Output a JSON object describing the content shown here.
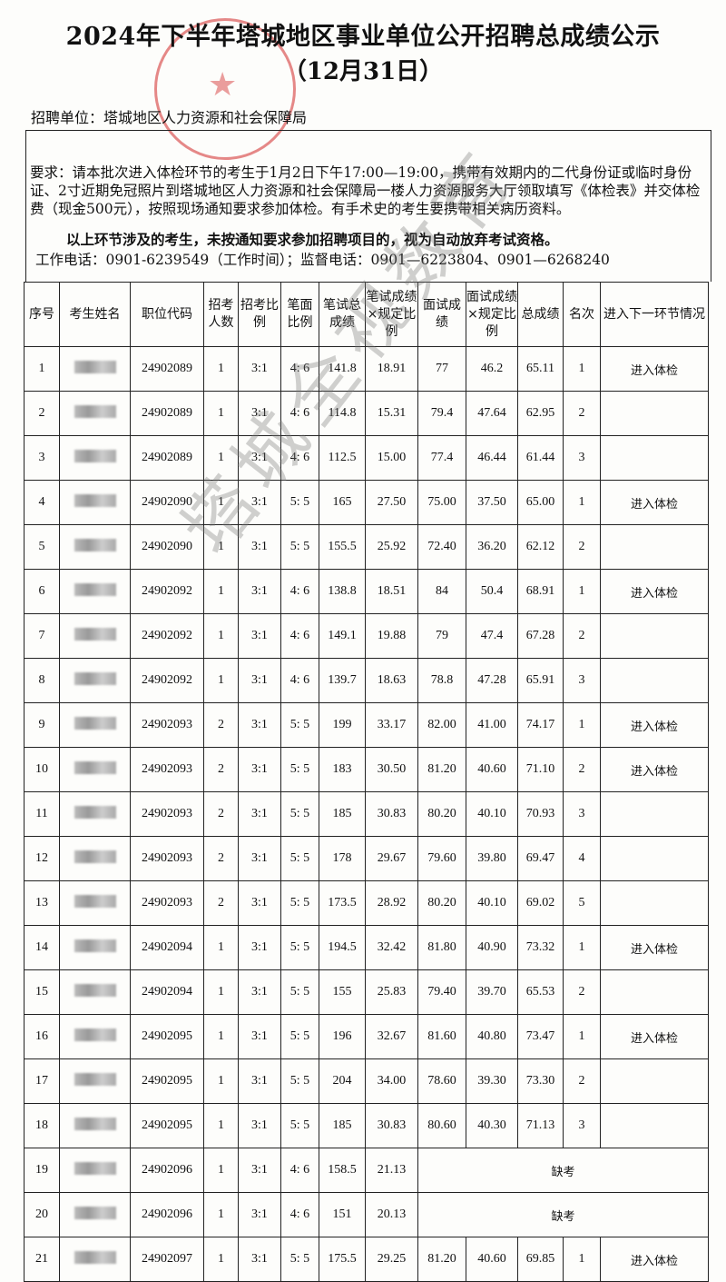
{
  "header": {
    "title": "2024年下半年塔城地区事业单位公开招聘总成绩公示",
    "subtitle": "（12月31日）",
    "unit": "招聘单位：塔城地区人力资源和社会保障局"
  },
  "notice": {
    "requirement": "要求：请本批次进入体检环节的考生于1月2日下午17:00—19:00，携带有效期内的二代身份证或临时身份证、2寸近期免冠照片到塔城地区人力资源和社会保障局一楼人力资源服务大厅领取填写《体检表》并交体检费（现金500元），按照现场通知要求参加体检。有手术史的考生要携带相关病历资料。",
    "warning": "以上环节涉及的考生，未按通知要求参加招聘项目的，视为自动放弃考试资格。",
    "phones": "工作电话：0901-6239549（工作时间）；监督电话：0901—6223804、0901—6268240"
  },
  "table": {
    "headers": [
      "序号",
      "考生姓名",
      "职位代码",
      "招考人数",
      "招考比例",
      "笔面比例",
      "笔试总成绩",
      "笔试成绩×规定比例",
      "面试成绩",
      "面试成绩×规定比例",
      "总成绩",
      "名次",
      "进入下一环节情况"
    ],
    "rows": [
      [
        "1",
        "",
        "24902089",
        "1",
        "3:1",
        "4: 6",
        "141.8",
        "18.91",
        "77",
        "46.2",
        "65.11",
        "1",
        "进入体检"
      ],
      [
        "2",
        "",
        "24902089",
        "1",
        "3:1",
        "4: 6",
        "114.8",
        "15.31",
        "79.4",
        "47.64",
        "62.95",
        "2",
        ""
      ],
      [
        "3",
        "",
        "24902089",
        "1",
        "3:1",
        "4: 6",
        "112.5",
        "15.00",
        "77.4",
        "46.44",
        "61.44",
        "3",
        ""
      ],
      [
        "4",
        "",
        "24902090",
        "1",
        "3:1",
        "5: 5",
        "165",
        "27.50",
        "75.00",
        "37.50",
        "65.00",
        "1",
        "进入体检"
      ],
      [
        "5",
        "",
        "24902090",
        "1",
        "3:1",
        "5: 5",
        "155.5",
        "25.92",
        "72.40",
        "36.20",
        "62.12",
        "2",
        ""
      ],
      [
        "6",
        "",
        "24902092",
        "1",
        "3:1",
        "4: 6",
        "138.8",
        "18.51",
        "84",
        "50.4",
        "68.91",
        "1",
        "进入体检"
      ],
      [
        "7",
        "",
        "24902092",
        "1",
        "3:1",
        "4: 6",
        "149.1",
        "19.88",
        "79",
        "47.4",
        "67.28",
        "2",
        ""
      ],
      [
        "8",
        "",
        "24902092",
        "1",
        "3:1",
        "4: 6",
        "139.7",
        "18.63",
        "78.8",
        "47.28",
        "65.91",
        "3",
        ""
      ],
      [
        "9",
        "",
        "24902093",
        "2",
        "3:1",
        "5: 5",
        "199",
        "33.17",
        "82.00",
        "41.00",
        "74.17",
        "1",
        "进入体检"
      ],
      [
        "10",
        "",
        "24902093",
        "2",
        "3:1",
        "5: 5",
        "183",
        "30.50",
        "81.20",
        "40.60",
        "71.10",
        "2",
        "进入体检"
      ],
      [
        "11",
        "",
        "24902093",
        "2",
        "3:1",
        "5: 5",
        "185",
        "30.83",
        "80.20",
        "40.10",
        "70.93",
        "3",
        ""
      ],
      [
        "12",
        "",
        "24902093",
        "2",
        "3:1",
        "5: 5",
        "178",
        "29.67",
        "79.60",
        "39.80",
        "69.47",
        "4",
        ""
      ],
      [
        "13",
        "",
        "24902093",
        "2",
        "3:1",
        "5: 5",
        "173.5",
        "28.92",
        "80.20",
        "40.10",
        "69.02",
        "5",
        ""
      ],
      [
        "14",
        "",
        "24902094",
        "1",
        "3:1",
        "5: 5",
        "194.5",
        "32.42",
        "81.80",
        "40.90",
        "73.32",
        "1",
        "进入体检"
      ],
      [
        "15",
        "",
        "24902094",
        "1",
        "3:1",
        "5: 5",
        "155",
        "25.83",
        "79.40",
        "39.70",
        "65.53",
        "2",
        ""
      ],
      [
        "16",
        "",
        "24902095",
        "1",
        "3:1",
        "5: 5",
        "196",
        "32.67",
        "81.60",
        "40.80",
        "73.47",
        "1",
        "进入体检"
      ],
      [
        "17",
        "",
        "24902095",
        "1",
        "3:1",
        "5: 5",
        "204",
        "34.00",
        "78.60",
        "39.30",
        "73.30",
        "2",
        ""
      ],
      [
        "18",
        "",
        "24902095",
        "1",
        "3:1",
        "5: 5",
        "185",
        "30.83",
        "80.60",
        "40.30",
        "71.13",
        "3",
        ""
      ],
      [
        "19",
        "",
        "24902096",
        "1",
        "3:1",
        "4: 6",
        "158.5",
        "21.13",
        "缺考"
      ],
      [
        "20",
        "",
        "24902096",
        "1",
        "3:1",
        "4: 6",
        "151",
        "20.13",
        "缺考"
      ],
      [
        "21",
        "",
        "24902097",
        "1",
        "3:1",
        "5: 5",
        "175.5",
        "29.25",
        "81.20",
        "40.60",
        "69.85",
        "1",
        "进入体检"
      ]
    ]
  },
  "watermark": "塔城全视数育",
  "colors": {
    "seal": "#d22828",
    "text": "#111111",
    "watermark": "#787878"
  }
}
